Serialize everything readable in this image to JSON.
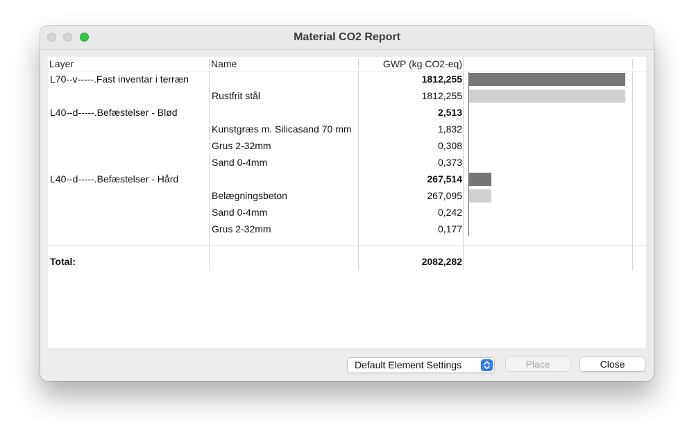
{
  "window": {
    "title": "Material CO2 Report"
  },
  "table": {
    "headers": {
      "layer": "Layer",
      "name": "Name",
      "gwp": "GWP (kg CO2-eq)"
    },
    "rows": [
      {
        "layer": "L70--v-----.Fast inventar i terræn",
        "name": "",
        "gwp": "1812,255",
        "value": 1812.255,
        "bold": true,
        "bar": "dark"
      },
      {
        "layer": "",
        "name": "Rustfrit stål",
        "gwp": "1812,255",
        "value": 1812.255,
        "bold": false,
        "bar": "light"
      },
      {
        "layer": "L40--d-----.Befæstelser - Blød",
        "name": "",
        "gwp": "2,513",
        "value": 2.513,
        "bold": true,
        "bar": "dark"
      },
      {
        "layer": "",
        "name": "Kunstgræs m. Silicasand 70 mm",
        "gwp": "1,832",
        "value": 1.832,
        "bold": false,
        "bar": "light"
      },
      {
        "layer": "",
        "name": "Grus 2-32mm",
        "gwp": "0,308",
        "value": 0.308,
        "bold": false,
        "bar": "light"
      },
      {
        "layer": "",
        "name": "Sand 0-4mm",
        "gwp": "0,373",
        "value": 0.373,
        "bold": false,
        "bar": "light"
      },
      {
        "layer": "L40--d-----.Befæstelser - Hård",
        "name": "",
        "gwp": "267,514",
        "value": 267.514,
        "bold": true,
        "bar": "dark"
      },
      {
        "layer": "",
        "name": "Belægningsbeton",
        "gwp": "267,095",
        "value": 267.095,
        "bold": false,
        "bar": "light"
      },
      {
        "layer": "",
        "name": "Sand 0-4mm",
        "gwp": "0,242",
        "value": 0.242,
        "bold": false,
        "bar": "light"
      },
      {
        "layer": "",
        "name": "Grus 2-32mm",
        "gwp": "0,177",
        "value": 0.177,
        "bold": false,
        "bar": "light"
      }
    ],
    "total": {
      "label": "Total:",
      "gwp": "2082,282"
    },
    "bar_max_value": 1812.255
  },
  "footer": {
    "settings_popup": "Default Element Settings",
    "place_label": "Place",
    "close_label": "Close"
  },
  "colors": {
    "bar_dark": "#767676",
    "bar_light": "#d1d1d1",
    "zoom_button": "#2fc640",
    "popup_accent": "#2f7ff0"
  }
}
